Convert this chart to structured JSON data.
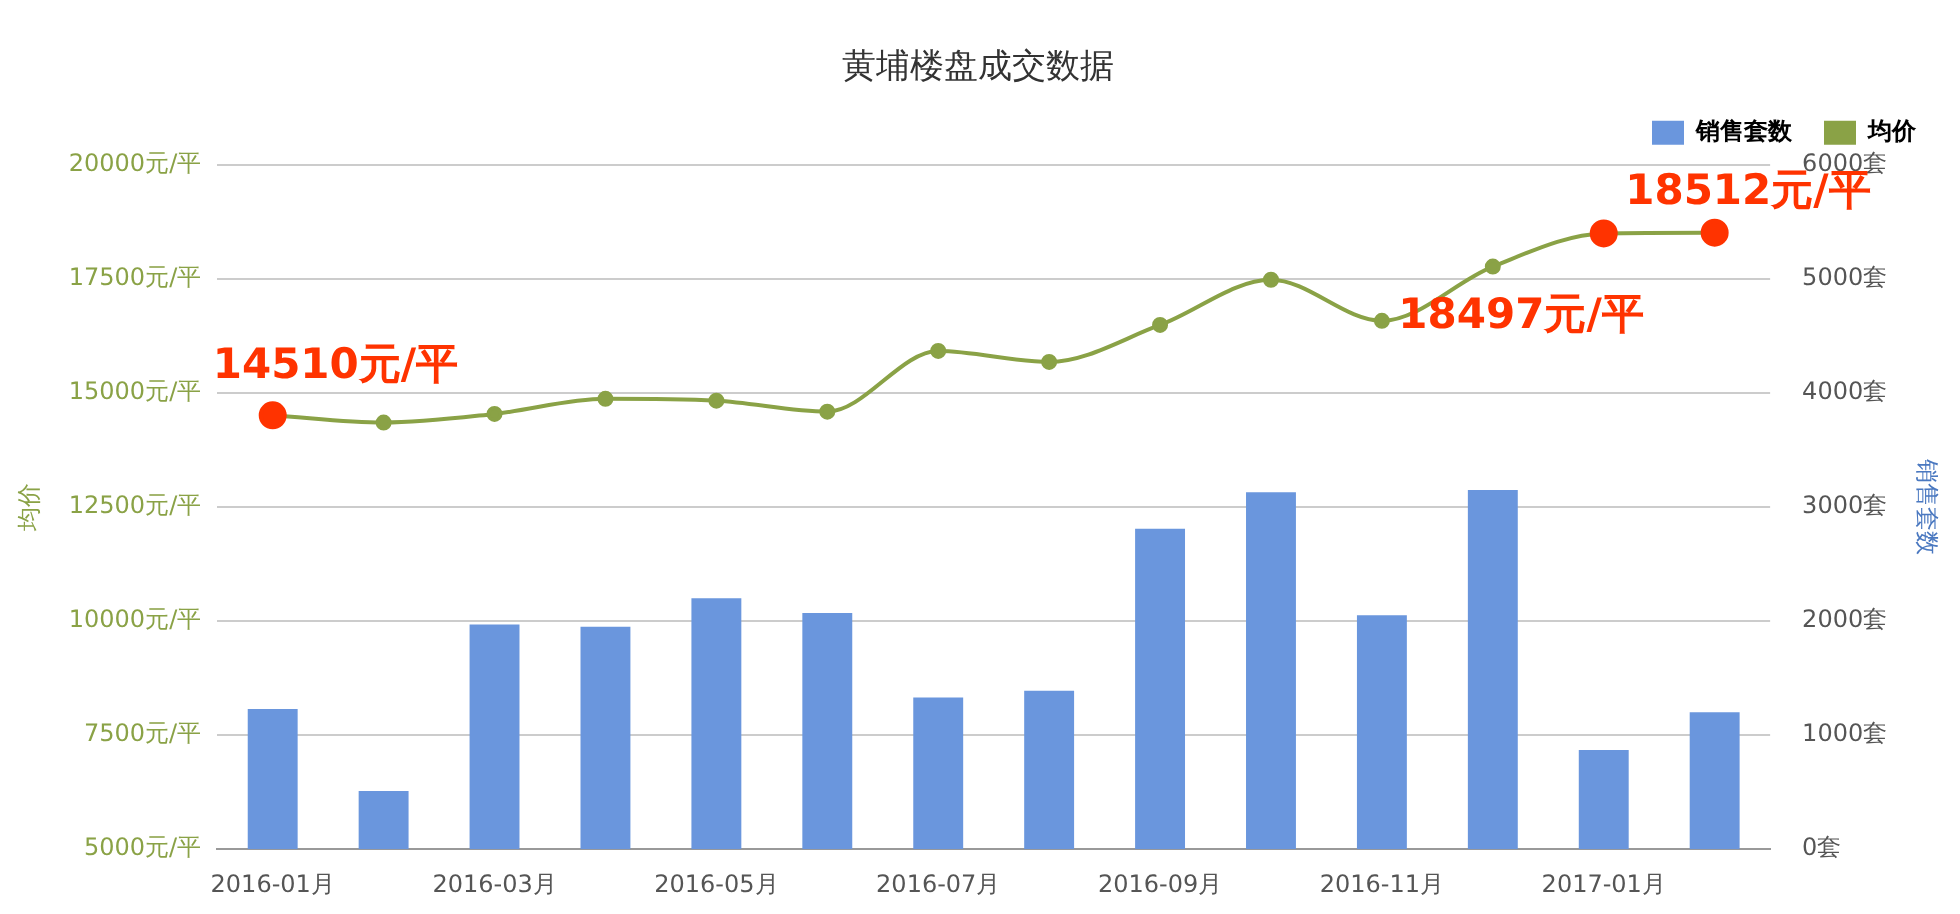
{
  "chart_data": {
    "type": "bar",
    "title": "黄埔楼盘成交数据",
    "ylabel": "均价",
    "y2label": "销售套数",
    "categories": [
      "2016-01月",
      null,
      "2016-03月",
      null,
      "2016-05月",
      null,
      "2016-07月",
      null,
      "2016-09月",
      null,
      "2016-11月",
      null,
      "2017-01月",
      null
    ],
    "series": [
      {
        "name": "销售套数",
        "axis": "y2",
        "color": "#6a96dd",
        "values": [
          1230,
          510,
          1970,
          1950,
          2200,
          2070,
          1330,
          1390,
          2810,
          3130,
          2050,
          3150,
          870,
          1200
        ]
      },
      {
        "name": "均价",
        "type": "line",
        "color": "#8aa246",
        "colors": [
          "#ff3300",
          "#8aa246",
          "#8aa246",
          "#8aa246",
          "#8aa246",
          "#8aa246",
          "#8aa246",
          "#8aa246",
          "#8aa246",
          "#8aa246",
          "#8aa246",
          "#8aa246",
          "#ff3300",
          "#ff3300"
        ],
        "values": [
          14510,
          14350,
          14540,
          14870,
          14830,
          14590,
          15920,
          15680,
          16490,
          17480,
          16580,
          17770,
          18497,
          18512
        ],
        "value_labels": [
          "14510元/平",
          null,
          null,
          null,
          null,
          null,
          null,
          null,
          null,
          null,
          null,
          null,
          "18497元/平",
          "18512元/平"
        ]
      }
    ],
    "ylim": [
      5000,
      20000
    ],
    "yticks": [
      {
        "value": 5000,
        "label": "5000元/平"
      },
      {
        "value": 7500,
        "label": "7500元/平"
      },
      {
        "value": 10000,
        "label": "10000元/平"
      },
      {
        "value": 12500,
        "label": "12500元/平"
      },
      {
        "value": 15000,
        "label": "15000元/平"
      },
      {
        "value": 17500,
        "label": "17500元/平"
      },
      {
        "value": 20000,
        "label": "20000元/平"
      }
    ],
    "y2lim": [
      0,
      6000
    ],
    "y2ticks": [
      {
        "value": 0,
        "label": "0套"
      },
      {
        "value": 1000,
        "label": "1000套"
      },
      {
        "value": 2000,
        "label": "2000套"
      },
      {
        "value": 3000,
        "label": "3000套"
      },
      {
        "value": 4000,
        "label": "4000套"
      },
      {
        "value": 5000,
        "label": "5000套"
      },
      {
        "value": 6000,
        "label": "6000套"
      }
    ],
    "grid": "y",
    "legend": "top right",
    "marker": "circle"
  }
}
